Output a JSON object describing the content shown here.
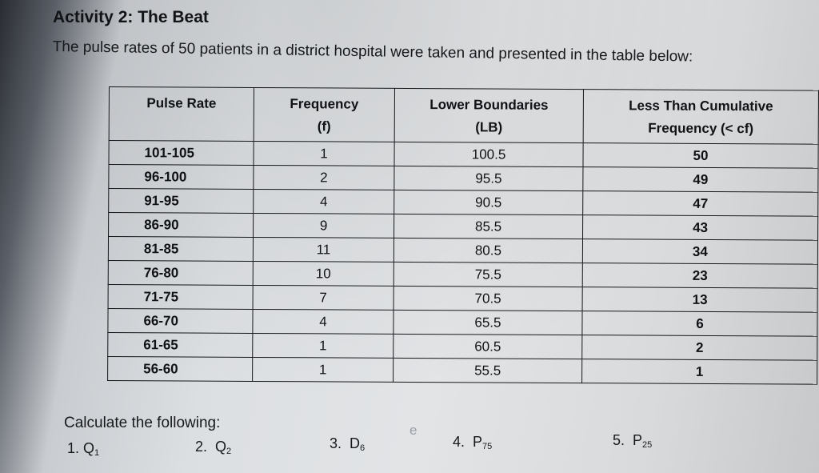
{
  "activity": {
    "title": "Activity 2: The Beat",
    "intro": "The pulse rates of 50 patients in a district hospital were taken and presented in the table below:"
  },
  "table": {
    "headers": [
      {
        "line1": "Pulse Rate",
        "line2": ""
      },
      {
        "line1": "Frequency",
        "line2": "(f)"
      },
      {
        "line1": "Lower Boundaries",
        "line2": "(LB)"
      },
      {
        "line1": "Less Than Cumulative",
        "line2": "Frequency (< cf)"
      }
    ],
    "rows": [
      {
        "pulse_rate": "101-105",
        "frequency": "1",
        "lower_boundary": "100.5",
        "less_than_cf": "50"
      },
      {
        "pulse_rate": "96-100",
        "frequency": "2",
        "lower_boundary": "95.5",
        "less_than_cf": "49"
      },
      {
        "pulse_rate": "91-95",
        "frequency": "4",
        "lower_boundary": "90.5",
        "less_than_cf": "47"
      },
      {
        "pulse_rate": "86-90",
        "frequency": "9",
        "lower_boundary": "85.5",
        "less_than_cf": "43"
      },
      {
        "pulse_rate": "81-85",
        "frequency": "11",
        "lower_boundary": "80.5",
        "less_than_cf": "34"
      },
      {
        "pulse_rate": "76-80",
        "frequency": "10",
        "lower_boundary": "75.5",
        "less_than_cf": "23"
      },
      {
        "pulse_rate": "71-75",
        "frequency": "7",
        "lower_boundary": "70.5",
        "less_than_cf": "13"
      },
      {
        "pulse_rate": "66-70",
        "frequency": "4",
        "lower_boundary": "65.5",
        "less_than_cf": "6"
      },
      {
        "pulse_rate": "61-65",
        "frequency": "1",
        "lower_boundary": "60.5",
        "less_than_cf": "2"
      },
      {
        "pulse_rate": "56-60",
        "frequency": "1",
        "lower_boundary": "55.5",
        "less_than_cf": "1"
      }
    ]
  },
  "calculate": {
    "label": "Calculate the following:",
    "items": [
      {
        "num": "1.",
        "base": "Q",
        "sub": "1"
      },
      {
        "num": "2.",
        "base": "Q",
        "sub": "2"
      },
      {
        "num": "3.",
        "base": "D",
        "sub": "6"
      },
      {
        "num": "4.",
        "base": "P",
        "sub": "75"
      },
      {
        "num": "5.",
        "base": "P",
        "sub": "25"
      }
    ],
    "stray_mark": "e"
  }
}
